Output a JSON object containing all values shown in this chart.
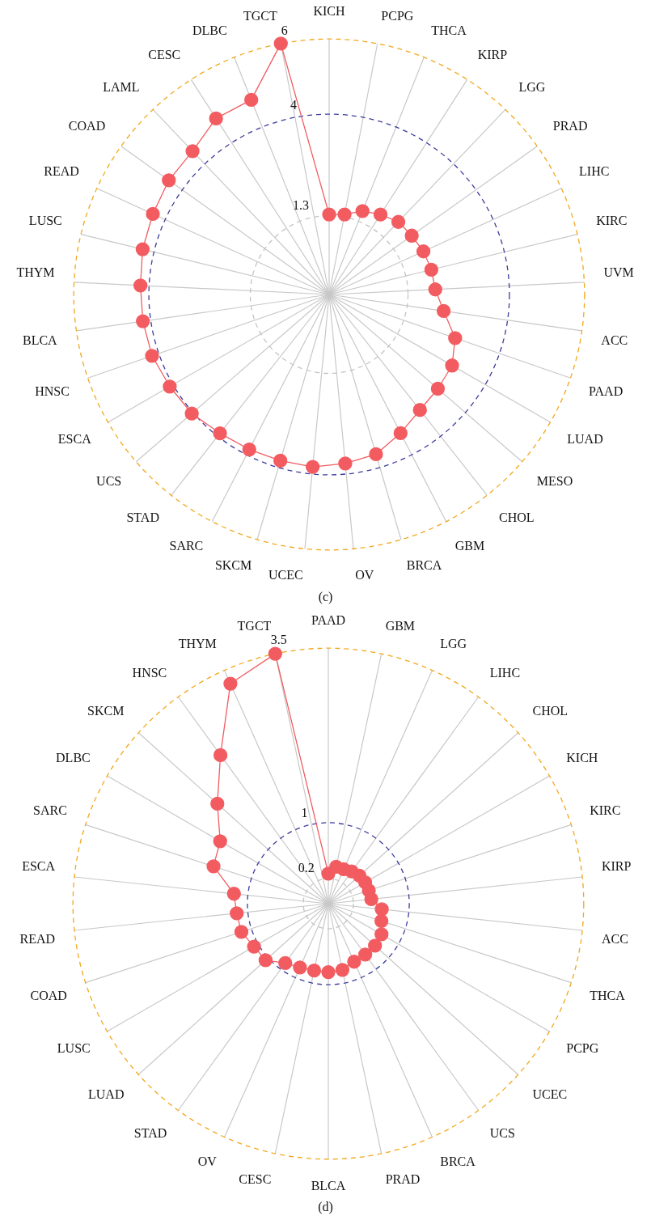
{
  "chart_data": [
    {
      "type": "radar",
      "title": "(c)",
      "categories": [
        "KICH",
        "PCPG",
        "THCA",
        "KIRP",
        "LGG",
        "PRAD",
        "LIHC",
        "KIRC",
        "UVM",
        "ACC",
        "PAAD",
        "LUAD",
        "MESO",
        "CHOL",
        "GBM",
        "BRCA",
        "OV",
        "UCEC",
        "SKCM",
        "SARC",
        "STAD",
        "UCS",
        "ESCA",
        "HNSC",
        "BLCA",
        "THYM",
        "LUSC",
        "READ",
        "COAD",
        "LAML",
        "CESC",
        "DLBC",
        "TGCT"
      ],
      "series": [
        {
          "color": "#f25c61",
          "values": [
            1.33,
            1.37,
            1.59,
            1.73,
            1.87,
            1.9,
            1.96,
            2.0,
            2.03,
            2.28,
            2.75,
            2.98,
            3.03,
            3.11,
            3.35,
            3.63,
            3.72,
            3.81,
            3.81,
            3.84,
            3.9,
            4.04,
            4.1,
            4.19,
            4.21,
            4.23,
            4.31,
            4.36,
            4.44,
            4.47,
            4.77,
            4.78,
            6
          ]
        }
      ],
      "ylim": [
        -0.8,
        6
      ],
      "yticks": [
        1.3,
        4,
        6
      ],
      "grid": true,
      "marker": "circle",
      "legend": false,
      "line_style": "solid"
    },
    {
      "type": "radar",
      "title": "(d)",
      "categories": [
        "PAAD",
        "GBM",
        "LGG",
        "LIHC",
        "CHOL",
        "KICH",
        "KIRC",
        "KIRP",
        "ACC",
        "THCA",
        "PCPG",
        "UCEC",
        "UCS",
        "BRCA",
        "PRAD",
        "BLCA",
        "CESC",
        "OV",
        "STAD",
        "LUAD",
        "LUSC",
        "COAD",
        "READ",
        "ESCA",
        "SARC",
        "DLBC",
        "SKCM",
        "HNSC",
        "THYM",
        "TGCT"
      ],
      "series": [
        {
          "color": "#f25c61",
          "values": [
            0.27,
            0.38,
            0.38,
            0.41,
            0.44,
            0.45,
            0.45,
            0.46,
            0.61,
            0.64,
            0.72,
            0.74,
            0.74,
            0.75,
            0.81,
            0.82,
            0.82,
            0.84,
            0.89,
            1.05,
            1.07,
            1.15,
            1.16,
            1.2,
            1.57,
            1.63,
            1.98,
            2.47,
            3.29,
            3.5
          ]
        }
      ],
      "ylim": [
        -0.16,
        3.5
      ],
      "yticks": [
        0.2,
        1,
        3.5
      ],
      "grid": true,
      "marker": "circle",
      "legend": false,
      "line_style": "solid"
    }
  ]
}
